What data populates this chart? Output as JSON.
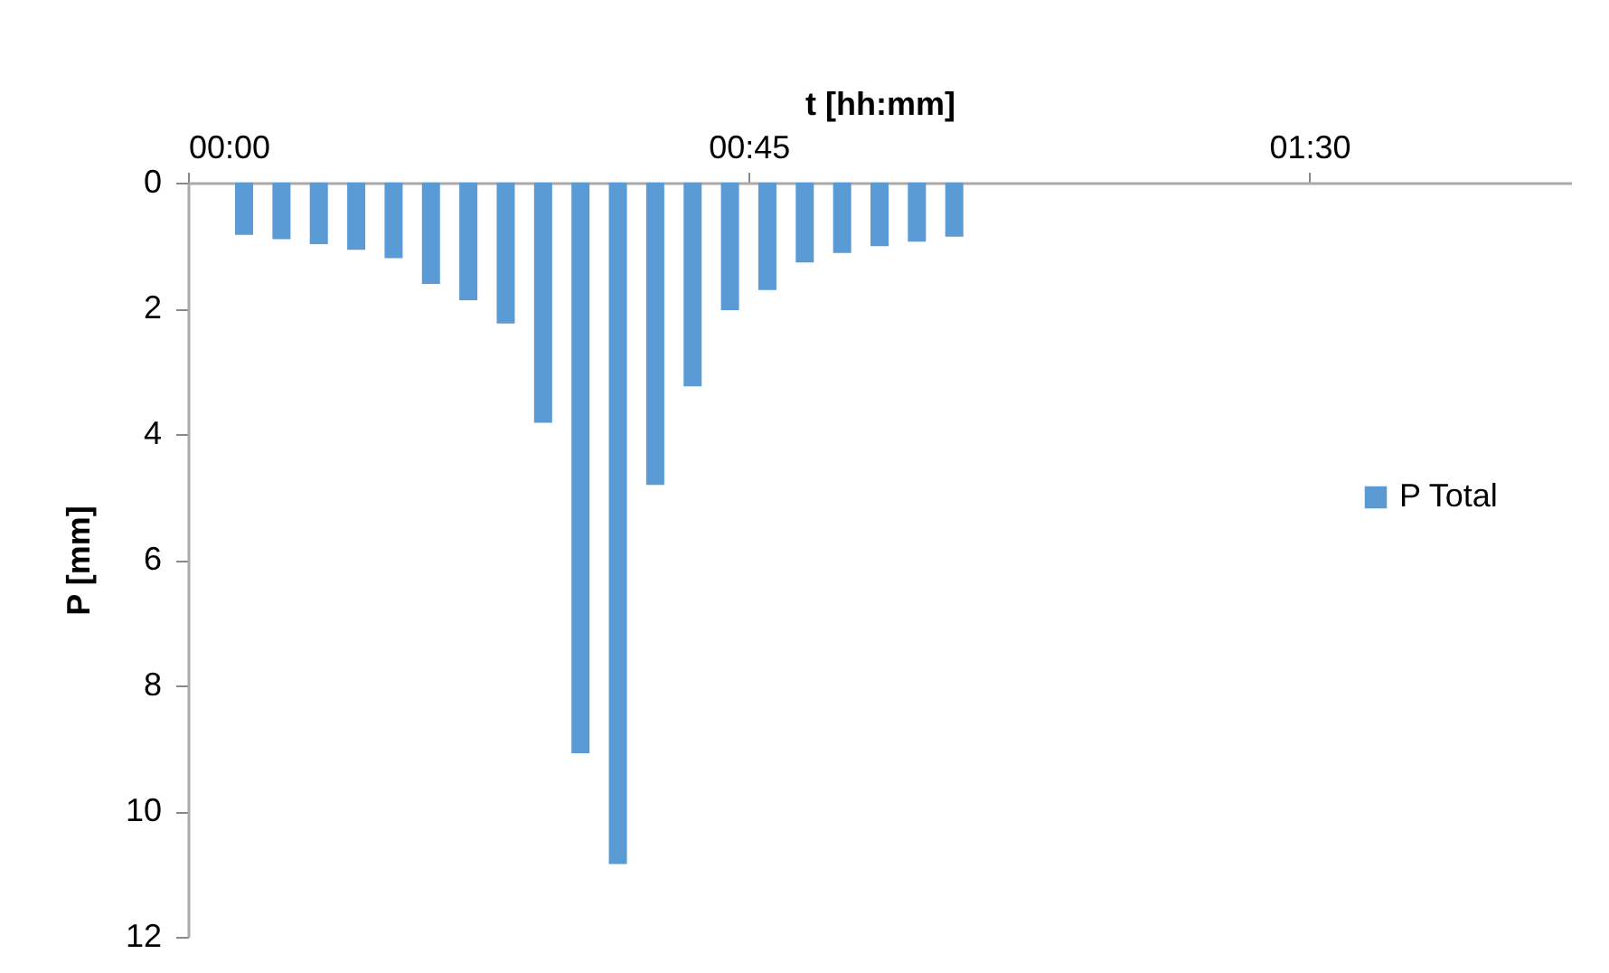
{
  "chart_data": {
    "type": "bar",
    "xlabel": "t [hh:mm]",
    "ylabel": "P [mm]",
    "x": [
      0.075,
      0.125,
      0.175,
      0.225,
      0.275,
      0.325,
      0.375,
      0.425,
      0.475,
      0.525,
      0.575,
      0.625,
      0.675,
      0.725,
      0.775,
      0.825,
      0.875,
      0.925,
      0.975,
      1.025
    ],
    "series": [
      {
        "name": "P Total",
        "color": "#5b9bd5",
        "values": [
          0.83,
          0.9,
          0.98,
          1.07,
          1.2,
          1.61,
          1.87,
          2.24,
          3.82,
          9.08,
          10.84,
          4.81,
          3.24,
          2.03,
          1.71,
          1.27,
          1.12,
          1.01,
          0.94,
          0.86
        ]
      }
    ],
    "xlim": [
      0,
      1.85
    ],
    "xticks": [
      {
        "value": 0,
        "label": "00:00"
      },
      {
        "value": 0.75,
        "label": "00:45"
      },
      {
        "value": 1.5,
        "label": "01:30"
      }
    ],
    "ylim": [
      12,
      0
    ],
    "yticks": [
      0,
      2,
      4,
      6,
      8,
      10,
      12
    ],
    "grid": false,
    "legend": "right"
  }
}
